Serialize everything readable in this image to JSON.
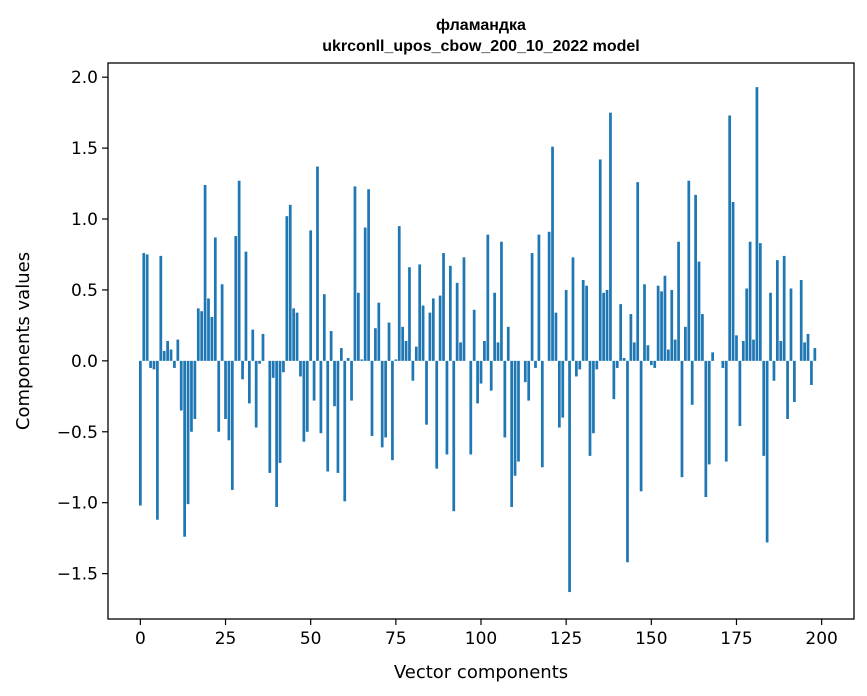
{
  "chart_data": {
    "type": "bar",
    "title": "фламандка",
    "subtitle": "ukrconll_upos_cbow_200_10_2022 model",
    "xlabel": "Vector components",
    "ylabel": "Components values",
    "xlim": [
      -9.5,
      209.5
    ],
    "ylim": [
      -1.82,
      2.1
    ],
    "x_ticks": [
      0,
      25,
      50,
      75,
      100,
      125,
      150,
      175,
      200
    ],
    "x_tick_labels": [
      "0",
      "25",
      "50",
      "75",
      "100",
      "125",
      "150",
      "175",
      "200"
    ],
    "y_ticks": [
      -1.5,
      -1.0,
      -0.5,
      0.0,
      0.5,
      1.0,
      1.5,
      2.0
    ],
    "y_tick_labels": [
      "−1.5",
      "−1.0",
      "−0.5",
      "0.0",
      "0.5",
      "1.0",
      "1.5",
      "2.0"
    ],
    "bar_color": "#1f77b4",
    "values": [
      -1.02,
      0.76,
      0.75,
      -0.05,
      -0.06,
      -1.12,
      0.74,
      0.07,
      0.14,
      0.08,
      -0.05,
      0.15,
      -0.35,
      -1.24,
      -1.01,
      -0.5,
      -0.41,
      0.37,
      0.35,
      1.24,
      0.44,
      0.31,
      0.87,
      -0.5,
      0.54,
      -0.41,
      -0.56,
      -0.91,
      0.88,
      1.27,
      -0.13,
      0.77,
      -0.3,
      0.22,
      -0.47,
      -0.02,
      0.19,
      0.0,
      -0.79,
      -0.12,
      -1.03,
      -0.72,
      -0.08,
      1.02,
      1.1,
      0.37,
      0.34,
      -0.11,
      -0.57,
      -0.5,
      0.92,
      -0.28,
      1.37,
      -0.51,
      0.47,
      -0.78,
      0.21,
      -0.32,
      -0.79,
      0.09,
      -0.99,
      0.02,
      -0.28,
      1.23,
      0.48,
      0.01,
      0.94,
      1.21,
      -0.53,
      0.23,
      0.41,
      -0.61,
      -0.54,
      0.27,
      -0.7,
      0.01,
      0.95,
      0.24,
      0.14,
      0.66,
      -0.14,
      0.1,
      0.68,
      0.39,
      -0.45,
      0.34,
      0.44,
      -0.76,
      0.46,
      0.76,
      -0.66,
      0.67,
      -1.06,
      0.55,
      0.13,
      0.73,
      0.0,
      -0.66,
      0.36,
      -0.3,
      -0.16,
      0.14,
      0.89,
      -0.21,
      0.48,
      0.13,
      0.84,
      -0.54,
      0.24,
      -1.03,
      -0.81,
      -0.71,
      0.0,
      -0.15,
      -0.28,
      0.76,
      -0.05,
      0.89,
      -0.75,
      0.0,
      0.91,
      1.51,
      0.34,
      -0.47,
      -0.4,
      0.5,
      -1.63,
      0.73,
      -0.11,
      -0.06,
      0.57,
      0.53,
      -0.67,
      -0.51,
      -0.06,
      1.42,
      0.48,
      0.5,
      1.75,
      -0.27,
      -0.05,
      0.4,
      0.02,
      -1.42,
      0.33,
      0.13,
      1.26,
      -0.92,
      0.54,
      0.11,
      -0.03,
      -0.05,
      0.53,
      0.49,
      0.6,
      0.08,
      0.5,
      0.15,
      0.84,
      -0.82,
      0.24,
      1.27,
      -0.31,
      1.17,
      0.7,
      0.33,
      -0.96,
      -0.73,
      0.06,
      0.0,
      0.0,
      -0.05,
      -0.71,
      1.73,
      1.12,
      0.18,
      -0.46,
      0.14,
      0.51,
      0.84,
      0.15,
      1.93,
      0.83,
      -0.67,
      -1.28,
      0.48,
      -0.14,
      0.71,
      0.14,
      0.74,
      -0.41,
      0.51,
      -0.29,
      0.0,
      0.57,
      0.13,
      0.19,
      -0.17,
      0.09
    ]
  }
}
